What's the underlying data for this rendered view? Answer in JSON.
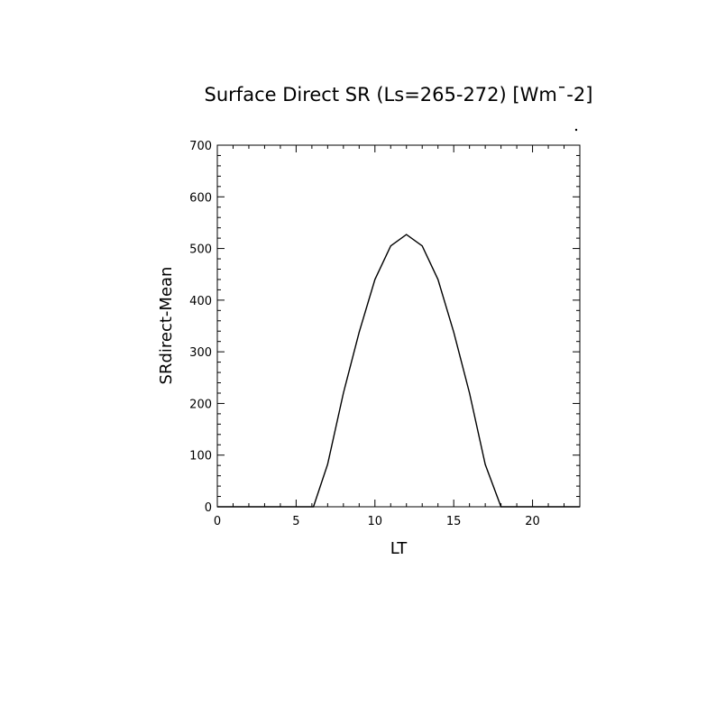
{
  "chart_data": {
    "type": "line",
    "title": "Surface Direct SR (Ls=265-272) [Wm¯-2]",
    "xlabel": "LT",
    "ylabel": "SRdirect-Mean",
    "xlim": [
      0,
      23
    ],
    "ylim": [
      0,
      700
    ],
    "x_ticks": [
      "0",
      "5",
      "10",
      "15",
      "20"
    ],
    "y_ticks": [
      "0",
      "100",
      "200",
      "300",
      "400",
      "500",
      "600",
      "700"
    ],
    "grid": false,
    "series": [
      {
        "x": [
          0,
          1,
          2,
          3,
          4,
          5,
          6,
          6.1,
          7,
          8,
          9,
          10,
          11,
          12,
          13,
          14,
          15,
          16,
          17,
          18,
          19,
          20,
          21,
          22,
          23
        ],
        "y": [
          0,
          0,
          0,
          0,
          0,
          0,
          0,
          0,
          82,
          220,
          338,
          440,
          505,
          527,
          505,
          440,
          338,
          220,
          82,
          0,
          0,
          0,
          0,
          0,
          0
        ]
      }
    ]
  }
}
